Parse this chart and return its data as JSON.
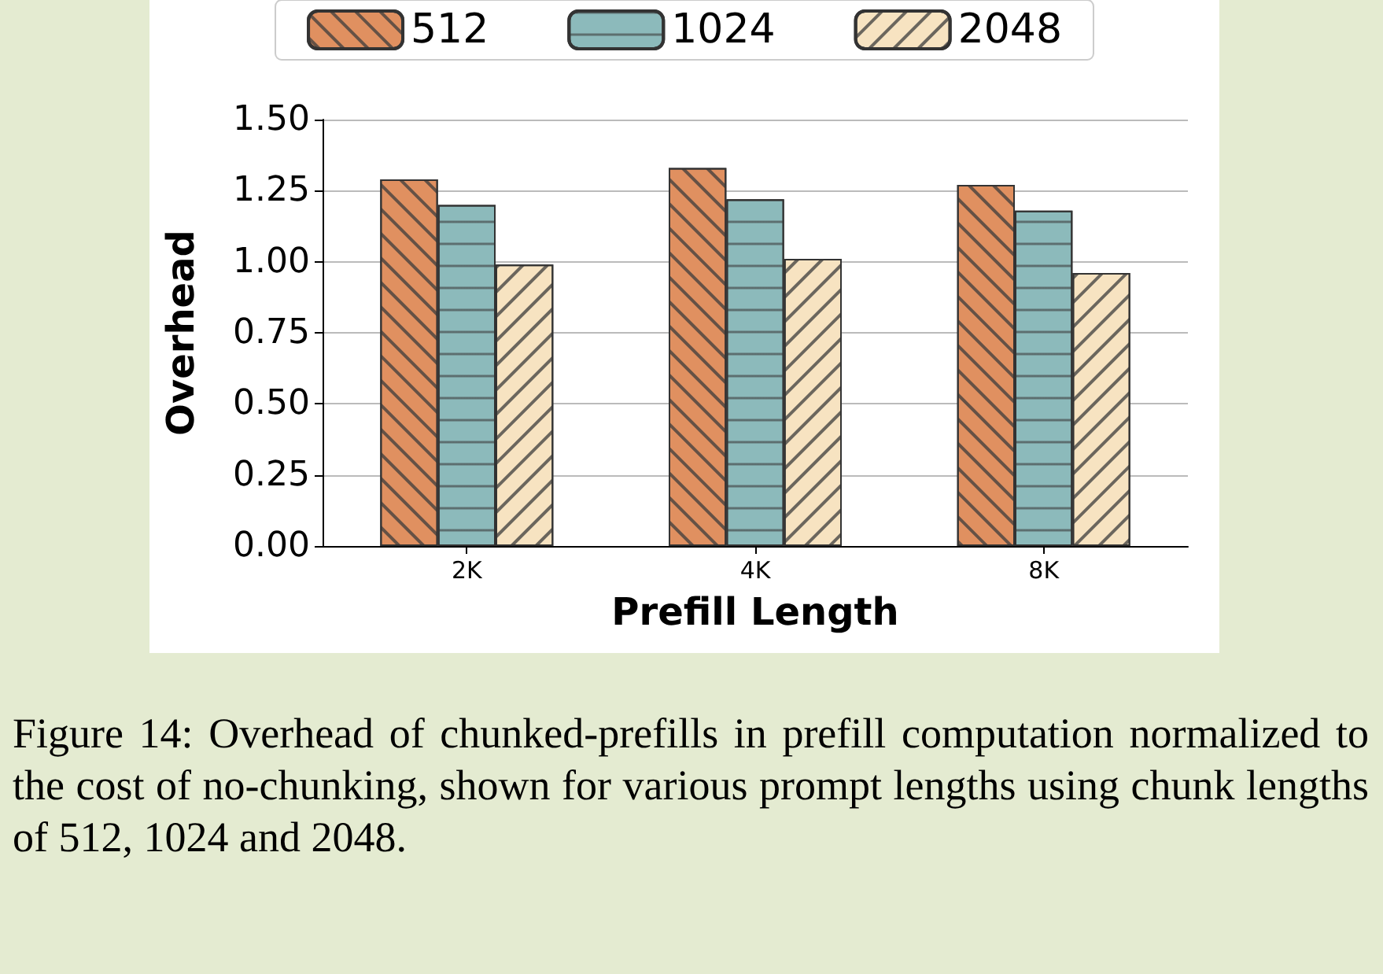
{
  "chart_data": {
    "type": "bar",
    "xlabel": "Prefill Length",
    "ylabel": "Overhead",
    "categories": [
      "2K",
      "4K",
      "8K"
    ],
    "series": [
      {
        "name": "512",
        "color": "#e09060",
        "values": [
          1.29,
          1.33,
          1.27
        ]
      },
      {
        "name": "1024",
        "color": "#8cbabb",
        "values": [
          1.2,
          1.22,
          1.18
        ]
      },
      {
        "name": "2048",
        "color": "#f7e3c1",
        "values": [
          0.99,
          1.01,
          0.96
        ]
      }
    ],
    "ylim": [
      0,
      1.5
    ],
    "yticks": [
      {
        "value": 0,
        "label": "0.00"
      },
      0.25,
      {
        "value": 0.5,
        "label": "0.50"
      },
      0.75,
      {
        "value": 1,
        "label": "1.00"
      },
      1.25,
      {
        "value": 1.5,
        "label": "1.50"
      }
    ],
    "grid": "y",
    "legend": "top",
    "annotations": [
      "Figure 14: Overhead of chunked-prefills in prefill computation normalized to the cost of no-chunking, shown for various prompt lengths using chunk lengths of 512, 1024 and 2048."
    ]
  }
}
